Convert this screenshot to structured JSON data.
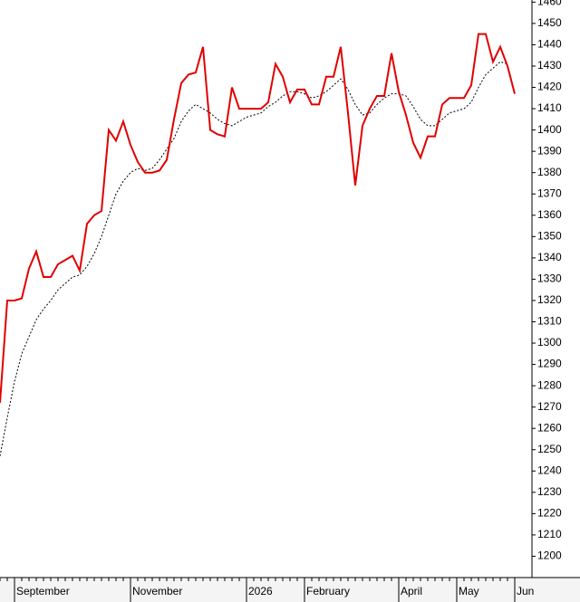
{
  "chart_data": {
    "type": "line",
    "categories": [
      null,
      null,
      "September",
      null,
      null,
      null,
      null,
      null,
      null,
      null,
      null,
      null,
      null,
      null,
      null,
      null,
      null,
      null,
      "November",
      null,
      null,
      null,
      null,
      null,
      null,
      null,
      null,
      null,
      null,
      null,
      null,
      null,
      null,
      null,
      "2026",
      null,
      null,
      null,
      null,
      null,
      null,
      null,
      "February",
      null,
      null,
      null,
      null,
      null,
      null,
      null,
      null,
      null,
      null,
      null,
      null,
      "April",
      null,
      null,
      null,
      null,
      null,
      null,
      null,
      "May",
      null,
      null,
      null,
      null,
      null,
      null,
      null,
      "Jun"
    ],
    "series": [
      {
        "color": "#e00000",
        "style": "solid",
        "values": [
          1272,
          1320,
          1320,
          1321,
          1335,
          1343,
          1331,
          1331,
          1337,
          1339,
          1341,
          1334,
          1356,
          1360,
          1362,
          1400,
          1395,
          1404,
          1393,
          1385,
          1380,
          1380,
          1381,
          1386,
          1405,
          1422,
          1426,
          1427,
          1439,
          1400,
          1398,
          1397,
          1420,
          1410,
          1410,
          1410,
          1410,
          1413,
          1431,
          1425,
          1413,
          1419,
          1419,
          1412,
          1412,
          1425,
          1425,
          1439,
          1408,
          1374,
          1402,
          1410,
          1416,
          1416,
          1436,
          1418,
          1407,
          1394,
          1387,
          1397,
          1397,
          1412,
          1415,
          1415,
          1415,
          1421,
          1445,
          1445,
          1432,
          1439,
          1430,
          1417
        ]
      },
      {
        "color": "#000000",
        "style": "dotted",
        "values": [
          1247,
          1265,
          1282,
          1295,
          1303,
          1311,
          1316,
          1320,
          1325,
          1328,
          1331,
          1332,
          1336,
          1342,
          1350,
          1360,
          1370,
          1376,
          1380,
          1382,
          1381,
          1382,
          1386,
          1391,
          1396,
          1404,
          1409,
          1412,
          1410,
          1408,
          1405,
          1403,
          1402,
          1404,
          1406,
          1407,
          1408,
          1411,
          1413,
          1416,
          1418,
          1418,
          1417,
          1415,
          1416,
          1418,
          1421,
          1424,
          1419,
          1412,
          1407,
          1408,
          1412,
          1415,
          1417,
          1417,
          1416,
          1411,
          1405,
          1402,
          1402,
          1405,
          1408,
          1409,
          1410,
          1413,
          1420,
          1426,
          1429,
          1432,
          1431,
          null
        ]
      }
    ],
    "ylim": [
      1190,
      1461
    ],
    "yticks": [
      1200,
      1210,
      1220,
      1230,
      1240,
      1250,
      1260,
      1270,
      1280,
      1290,
      1300,
      1310,
      1320,
      1330,
      1340,
      1350,
      1360,
      1370,
      1380,
      1390,
      1400,
      1410,
      1420,
      1430,
      1440,
      1450,
      1460
    ],
    "axis_side": "right"
  }
}
